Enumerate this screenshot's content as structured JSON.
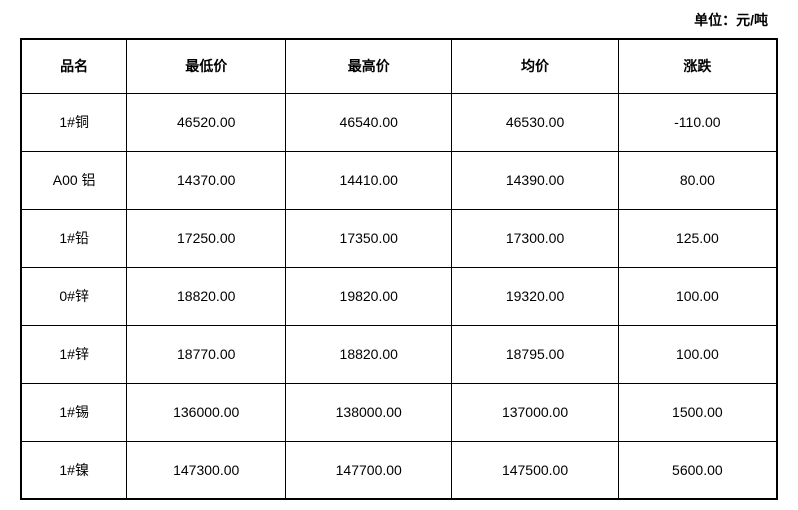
{
  "unit_label": "单位：元/吨",
  "table": {
    "columns": [
      {
        "key": "name",
        "label": "品名"
      },
      {
        "key": "low",
        "label": "最低价"
      },
      {
        "key": "high",
        "label": "最高价"
      },
      {
        "key": "avg",
        "label": "均价"
      },
      {
        "key": "change",
        "label": "涨跌"
      }
    ],
    "rows": [
      {
        "name": "1#铜",
        "low": "46520.00",
        "high": "46540.00",
        "avg": "46530.00",
        "change": "-110.00"
      },
      {
        "name": "A00 铝",
        "low": "14370.00",
        "high": "14410.00",
        "avg": "14390.00",
        "change": "80.00"
      },
      {
        "name": "1#铅",
        "low": "17250.00",
        "high": "17350.00",
        "avg": "17300.00",
        "change": "125.00"
      },
      {
        "name": "0#锌",
        "low": "18820.00",
        "high": "19820.00",
        "avg": "19320.00",
        "change": "100.00"
      },
      {
        "name": "1#锌",
        "low": "18770.00",
        "high": "18820.00",
        "avg": "18795.00",
        "change": "100.00"
      },
      {
        "name": "1#锡",
        "low": "136000.00",
        "high": "138000.00",
        "avg": "137000.00",
        "change": "1500.00"
      },
      {
        "name": "1#镍",
        "low": "147300.00",
        "high": "147700.00",
        "avg": "147500.00",
        "change": "5600.00"
      }
    ],
    "styling": {
      "border_color": "#000000",
      "outer_border_width": 2,
      "inner_border_width": 1,
      "background_color": "#ffffff",
      "header_font_weight": "bold",
      "cell_font_size": 14,
      "text_color": "#000000",
      "header_row_height": 54,
      "data_row_height": 58,
      "column_widths_pct": [
        14,
        21,
        22,
        22,
        21
      ],
      "text_align": "center"
    }
  }
}
